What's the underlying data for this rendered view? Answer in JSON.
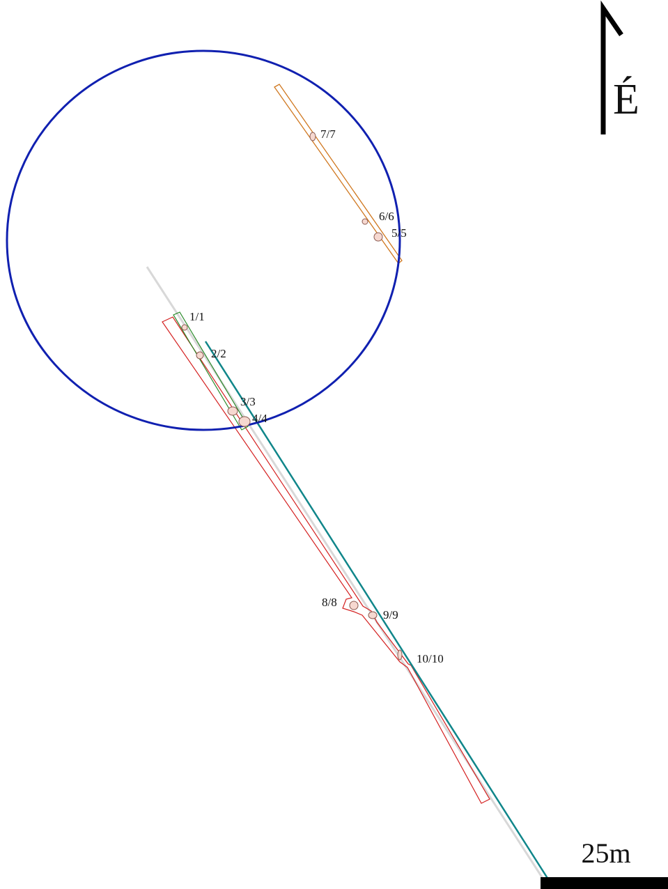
{
  "features": [
    {
      "label": "1/1"
    },
    {
      "label": "2/2"
    },
    {
      "label": "3/3"
    },
    {
      "label": "4/4"
    },
    {
      "label": "5/5"
    },
    {
      "label": "6/6"
    },
    {
      "label": "7/7"
    },
    {
      "label": "8/8"
    },
    {
      "label": "9/9"
    },
    {
      "label": "10/10"
    }
  ],
  "north_arrow": {
    "label": "É"
  },
  "scale_bar": {
    "label": "25m"
  }
}
